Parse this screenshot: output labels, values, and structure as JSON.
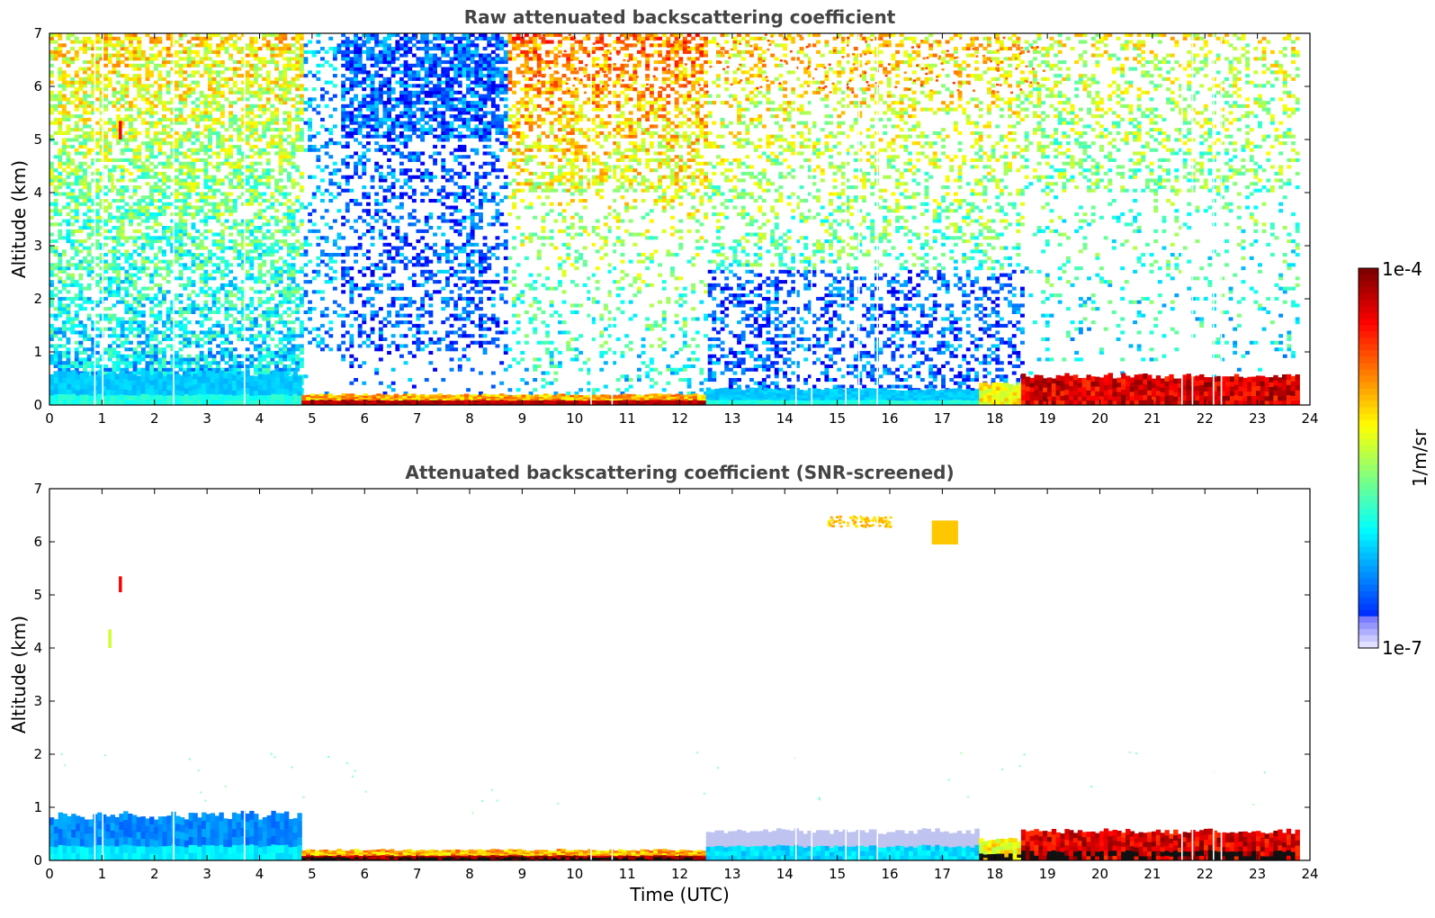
{
  "chart_data": [
    {
      "type": "heatmap",
      "title": "Raw attenuated backscattering coefficient",
      "xlabel": "",
      "ylabel": "Altitude (km)",
      "xlim": [
        0,
        24
      ],
      "ylim": [
        0,
        7
      ],
      "xticks": [
        0,
        1,
        2,
        3,
        4,
        5,
        6,
        7,
        8,
        9,
        10,
        11,
        12,
        13,
        14,
        15,
        16,
        17,
        18,
        19,
        20,
        21,
        22,
        23,
        24
      ],
      "yticks": [
        0,
        1,
        2,
        3,
        4,
        5,
        6,
        7
      ],
      "layers": [
        {
          "t0": 0,
          "t1": 4.8,
          "alt_top": 0.6,
          "level": "blue-cyan"
        },
        {
          "t0": 4.8,
          "t1": 12.5,
          "alt_top": 0.2,
          "level": "red-orange"
        },
        {
          "t0": 12.5,
          "t1": 17.7,
          "alt_top": 0.3,
          "level": "cyan-blue"
        },
        {
          "t0": 17.7,
          "t1": 18.5,
          "alt_top": 0.4,
          "level": "yellow-green"
        },
        {
          "t0": 18.5,
          "t1": 23.8,
          "alt_top": 0.55,
          "level": "dark red"
        }
      ],
      "features": [
        {
          "t": 1.35,
          "alt": [
            5.0,
            5.35
          ],
          "level": "red"
        },
        {
          "t": 1.2,
          "alt": [
            4.0,
            4.35
          ],
          "level": "yellow-green"
        },
        {
          "t0": 9,
          "t1": 19,
          "alt": [
            5.9,
            7.0
          ],
          "level": "orange"
        }
      ]
    },
    {
      "type": "heatmap",
      "title": "Attenuated backscattering coefficient (SNR-screened)",
      "xlabel": "Time (UTC)",
      "ylabel": "Altitude (km)",
      "xlim": [
        0,
        24
      ],
      "ylim": [
        0,
        7
      ],
      "xticks": [
        0,
        1,
        2,
        3,
        4,
        5,
        6,
        7,
        8,
        9,
        10,
        11,
        12,
        13,
        14,
        15,
        16,
        17,
        18,
        19,
        20,
        21,
        22,
        23,
        24
      ],
      "yticks": [
        0,
        1,
        2,
        3,
        4,
        5,
        6,
        7
      ],
      "layers": [
        {
          "t0": 0,
          "t1": 4.8,
          "alt_top": 0.85,
          "level": "blue"
        },
        {
          "t0": 4.8,
          "t1": 12.5,
          "alt_top": 0.2,
          "level": "black-red"
        },
        {
          "t0": 12.5,
          "t1": 17.7,
          "alt_top": 0.55,
          "level": "light blue"
        },
        {
          "t0": 17.7,
          "t1": 18.5,
          "alt_top": 0.4,
          "level": "black-green"
        },
        {
          "t0": 18.5,
          "t1": 23.8,
          "alt_top": 0.55,
          "level": "red-black"
        }
      ],
      "features": [
        {
          "t": 1.35,
          "alt": [
            5.05,
            5.35
          ],
          "level": "red"
        },
        {
          "t": 1.15,
          "alt": [
            4.0,
            4.35
          ],
          "level": "yellow-green"
        },
        {
          "t0": 16.8,
          "t1": 17.3,
          "alt": [
            5.95,
            6.4
          ],
          "level": "yellow"
        },
        {
          "t0": 14.8,
          "t1": 16.0,
          "alt": [
            6.3,
            6.5
          ],
          "level": "yellow"
        }
      ]
    }
  ],
  "colorbar": {
    "label": "1/m/sr",
    "max_label": "1e-4",
    "min_label": "1e-7",
    "colormap": "jet-with-white-bottom"
  }
}
